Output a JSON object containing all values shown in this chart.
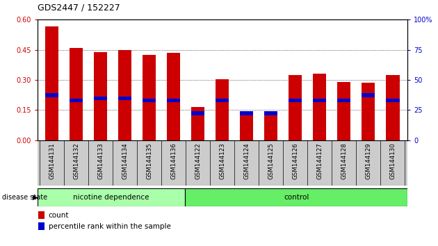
{
  "title": "GDS2447 / 152227",
  "samples": [
    "GSM144131",
    "GSM144132",
    "GSM144133",
    "GSM144134",
    "GSM144135",
    "GSM144136",
    "GSM144122",
    "GSM144123",
    "GSM144124",
    "GSM144125",
    "GSM144126",
    "GSM144127",
    "GSM144128",
    "GSM144129",
    "GSM144130"
  ],
  "count_values": [
    0.565,
    0.46,
    0.44,
    0.45,
    0.425,
    0.435,
    0.165,
    0.305,
    0.135,
    0.13,
    0.325,
    0.33,
    0.29,
    0.285,
    0.325
  ],
  "percentile_values": [
    0.215,
    0.19,
    0.2,
    0.2,
    0.19,
    0.19,
    0.125,
    0.19,
    0.125,
    0.125,
    0.19,
    0.19,
    0.19,
    0.215,
    0.19
  ],
  "percentile_heights": [
    0.018,
    0.018,
    0.018,
    0.018,
    0.018,
    0.018,
    0.018,
    0.018,
    0.018,
    0.018,
    0.018,
    0.018,
    0.018,
    0.018,
    0.018
  ],
  "bar_color": "#cc0000",
  "pct_color": "#0000cc",
  "ylim_left": [
    0,
    0.6
  ],
  "ylim_right": [
    0,
    100
  ],
  "yticks_left": [
    0,
    0.15,
    0.3,
    0.45,
    0.6
  ],
  "yticks_right": [
    0,
    25,
    50,
    75,
    100
  ],
  "nicotine_count": 6,
  "total_count": 15,
  "group_nicotine_label": "nicotine dependence",
  "group_control_label": "control",
  "group_nicotine_color": "#aaffaa",
  "group_control_color": "#66ee66",
  "group_label": "disease state",
  "bg_color": "#ffffff",
  "xtick_bg_color": "#cccccc",
  "bar_width": 0.55,
  "tick_label_color": "#cc0000",
  "right_tick_color": "#0000cc",
  "title_fontsize": 9,
  "bar_fontsize": 6.5,
  "group_fontsize": 7.5,
  "legend_fontsize": 7.5
}
